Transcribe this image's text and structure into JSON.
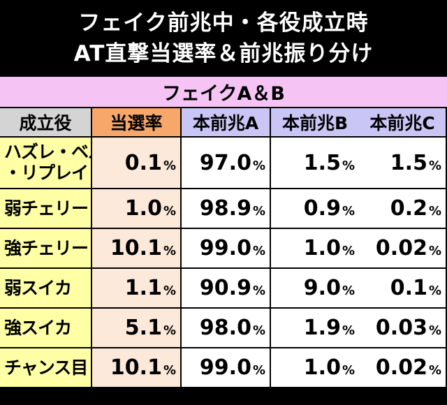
{
  "title": {
    "line1": "フェイク前兆中・各役成立時",
    "line2": "AT直撃当選率＆前兆振り分け"
  },
  "table": {
    "group_label": "フェイクA＆B",
    "headers": [
      "成立役",
      "当選率",
      "本前兆A",
      "本前兆B",
      "本前兆C"
    ],
    "percent_sign": "%",
    "rows": [
      {
        "role_lines": [
          "ハズレ・ベル",
          "・リプレイ"
        ],
        "rate": "0.1",
        "a": "97.0",
        "b": "1.5",
        "c": "1.5"
      },
      {
        "role": "弱チェリー",
        "rate": "1.0",
        "a": "98.9",
        "b": "0.9",
        "c": "0.2"
      },
      {
        "role": "強チェリー",
        "rate": "10.1",
        "a": "99.0",
        "b": "1.0",
        "c": "0.02"
      },
      {
        "role": "弱スイカ",
        "rate": "1.1",
        "a": "90.9",
        "b": "9.0",
        "c": "0.1"
      },
      {
        "role": "強スイカ",
        "rate": "5.1",
        "a": "98.0",
        "b": "1.9",
        "c": "0.03"
      },
      {
        "role": "チャンス目",
        "rate": "10.1",
        "a": "99.0",
        "b": "1.0",
        "c": "0.02"
      }
    ]
  },
  "colors": {
    "group_bg": "#f5c4f5",
    "role_bg": "#ffffa6",
    "rate_header_bg": "#f6a769",
    "rate_bg": "#fde9d9",
    "prefix_header_bg": "#c9c6f5",
    "yaku_header_bg": "#d4d4d4"
  }
}
